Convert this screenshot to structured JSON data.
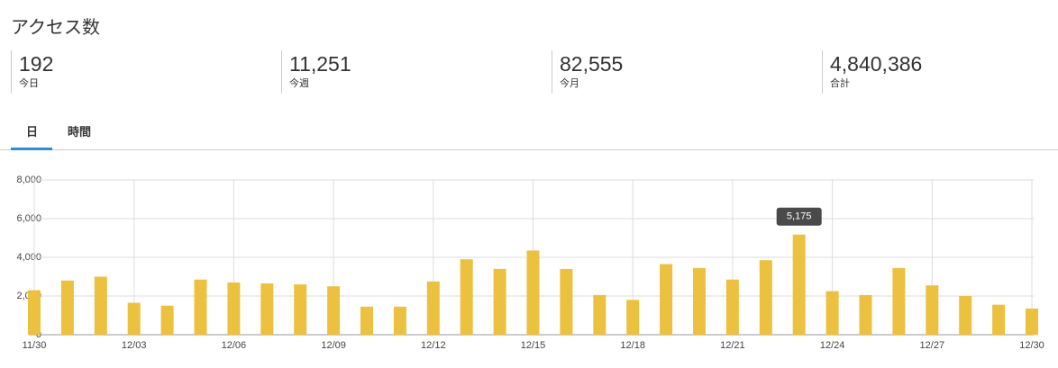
{
  "header": {
    "title": "アクセス数"
  },
  "stats": [
    {
      "value": "192",
      "label": "今日"
    },
    {
      "value": "11,251",
      "label": "今週"
    },
    {
      "value": "82,555",
      "label": "今月"
    },
    {
      "value": "4,840,386",
      "label": "合計"
    }
  ],
  "tabs": [
    "日",
    "時間"
  ],
  "chart_data": {
    "type": "bar",
    "color": "#ecc13f",
    "categories": [
      "11/30",
      null,
      null,
      "12/03",
      null,
      null,
      "12/06",
      null,
      null,
      "12/09",
      null,
      null,
      "12/12",
      null,
      null,
      "12/15",
      null,
      null,
      "12/18",
      null,
      null,
      "12/21",
      null,
      null,
      "12/24",
      null,
      null,
      "12/27",
      null,
      null,
      "12/30"
    ],
    "values": [
      2300,
      2800,
      3000,
      1650,
      1500,
      2850,
      2700,
      2650,
      2600,
      2500,
      1450,
      1450,
      2750,
      3900,
      3400,
      4350,
      3400,
      2050,
      1800,
      3650,
      3450,
      2850,
      3850,
      5175,
      2250,
      2050,
      3450,
      2550,
      2000,
      1550,
      1350
    ],
    "value_labels": [
      null,
      null,
      null,
      null,
      null,
      null,
      null,
      null,
      null,
      null,
      null,
      null,
      null,
      null,
      null,
      null,
      null,
      null,
      null,
      null,
      null,
      null,
      null,
      "5,175",
      null,
      null,
      null,
      null,
      null,
      null,
      null
    ],
    "ylim": [
      0,
      8000
    ],
    "yticks": [
      0,
      {
        "value": 2000,
        "label": "2,000"
      },
      {
        "value": 4000,
        "label": "4,000"
      },
      {
        "value": 6000,
        "label": "6,000"
      },
      {
        "value": 8000,
        "label": "8,000"
      }
    ],
    "grid": true
  }
}
